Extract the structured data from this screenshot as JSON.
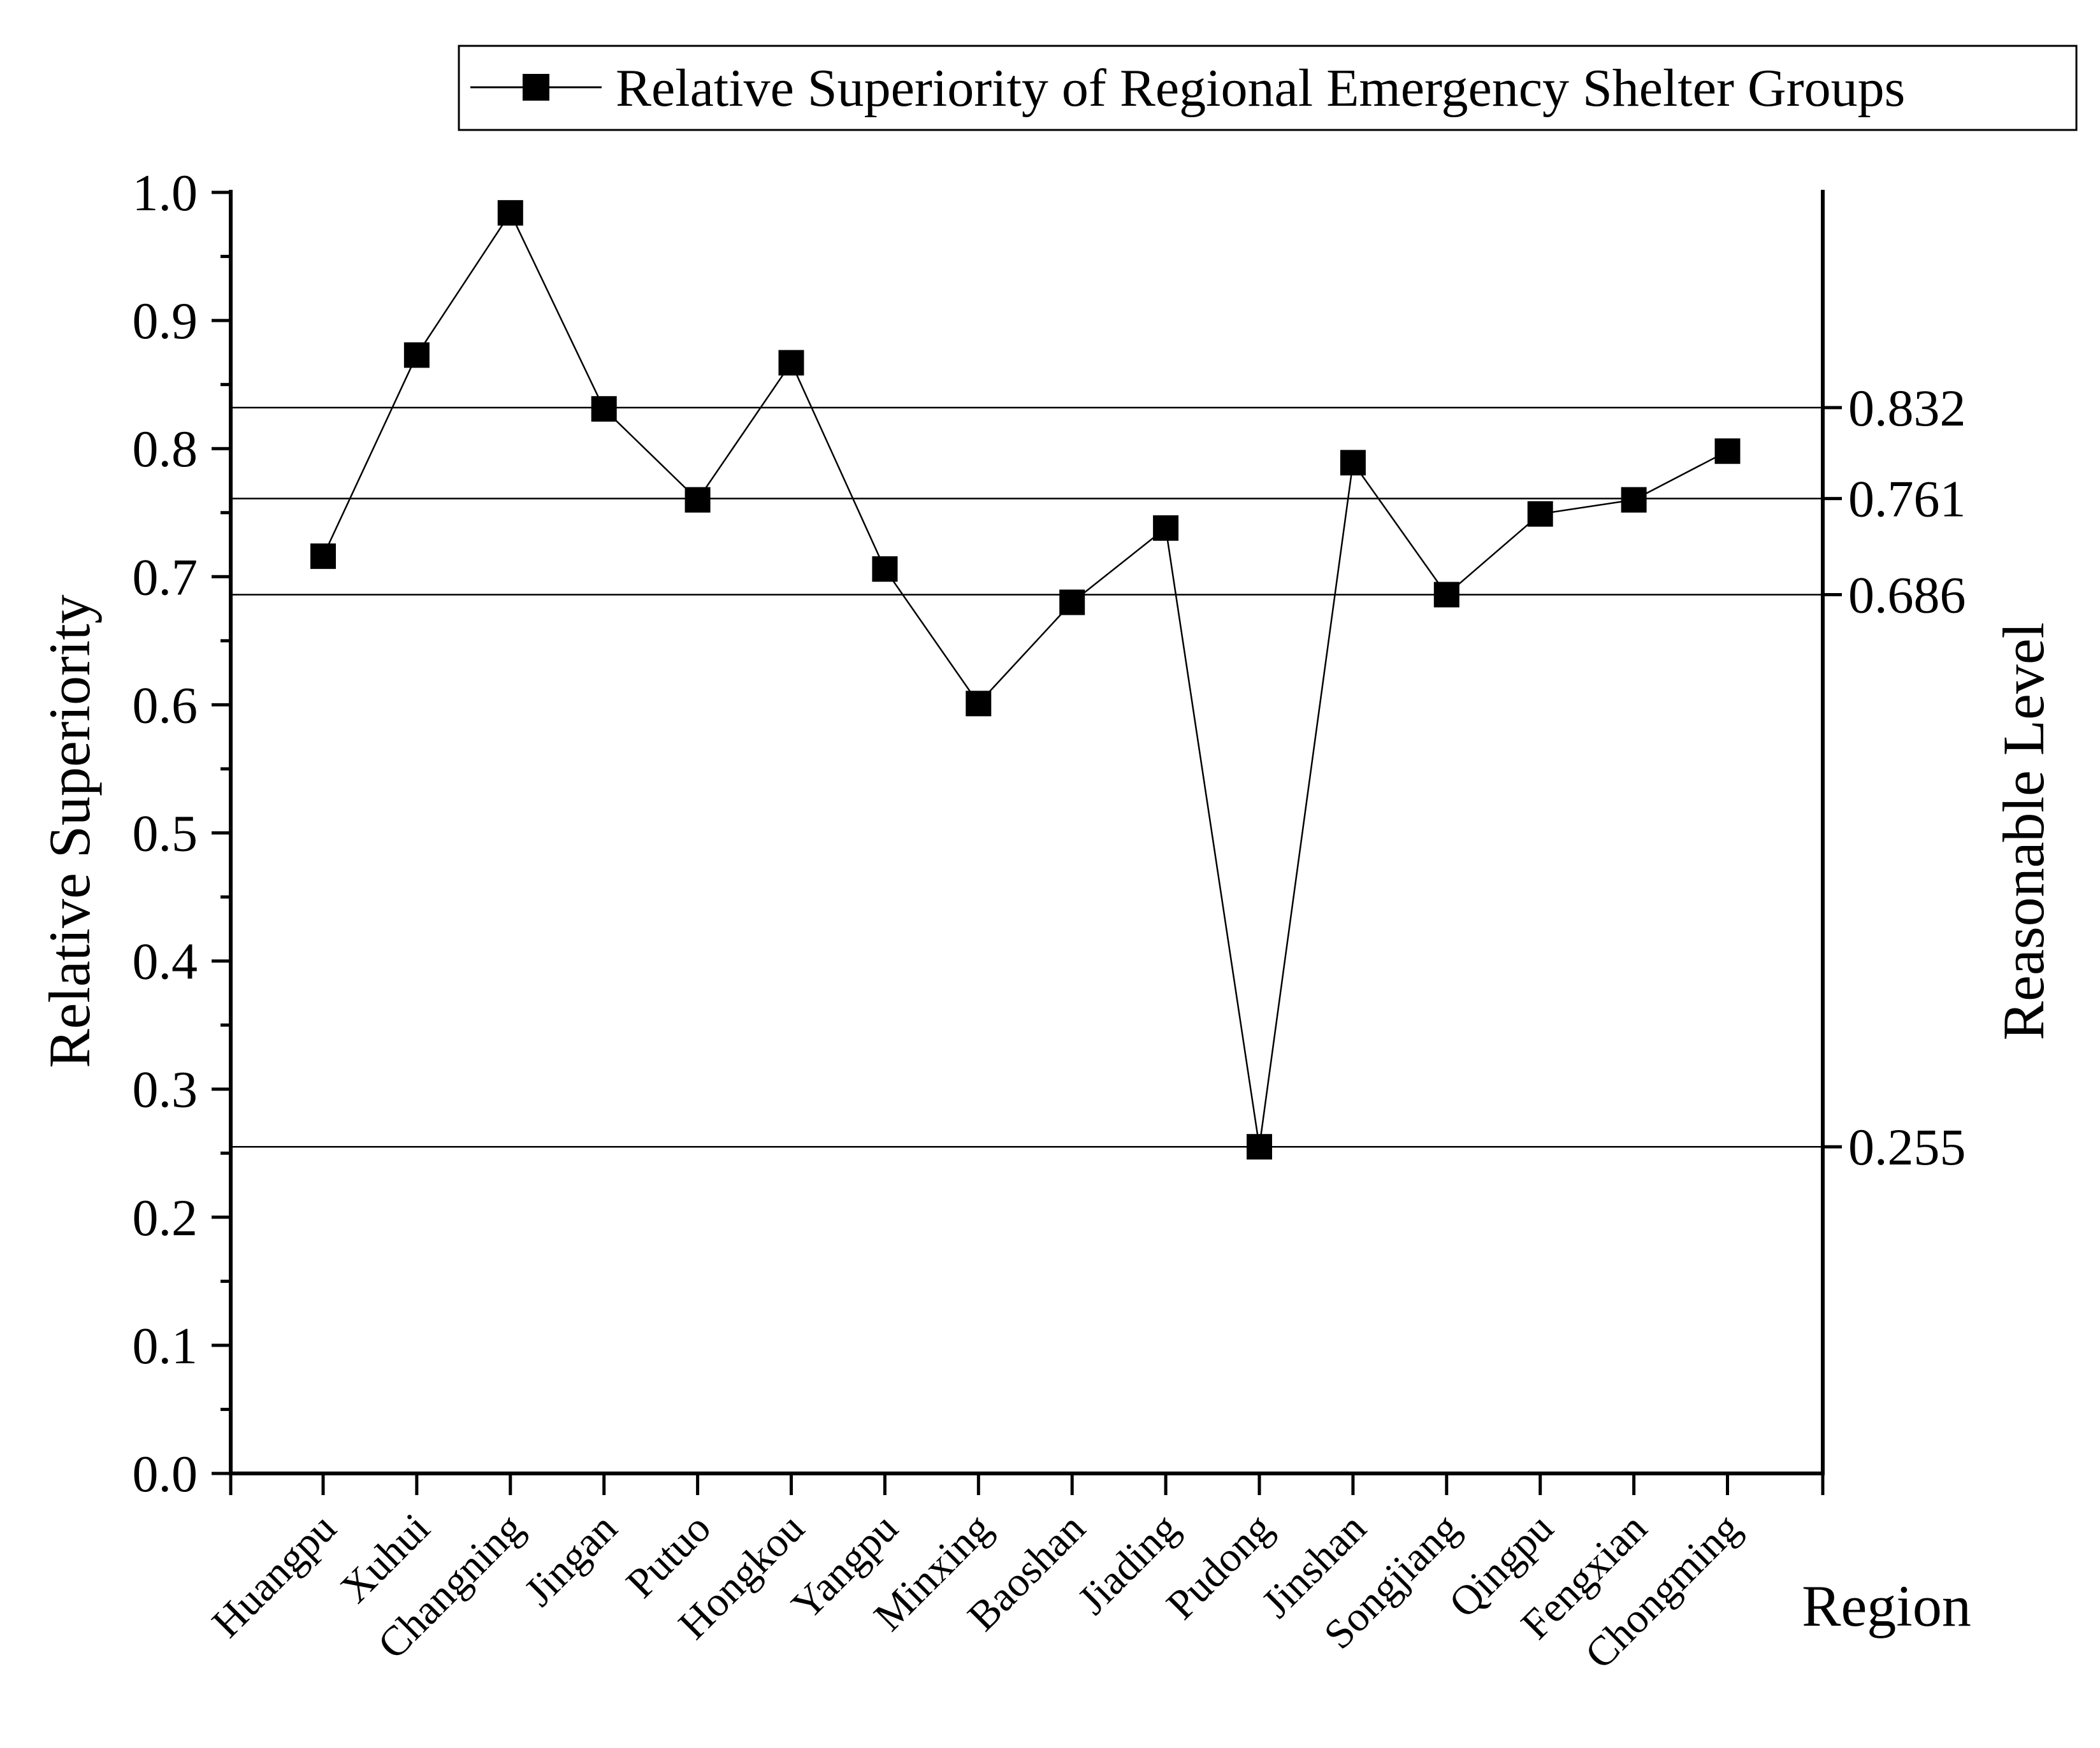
{
  "chart_data": {
    "type": "line",
    "title": "",
    "xlabel": "Region",
    "ylabel": "Relative Superiority",
    "y2label": "Reasonable Level",
    "ylim": [
      0,
      1
    ],
    "yticks": [
      "0.0",
      "0.1",
      "0.2",
      "0.3",
      "0.4",
      "0.5",
      "0.6",
      "0.7",
      "0.8",
      "0.9",
      "1.0"
    ],
    "grid": false,
    "legend_position": "top-right",
    "categories": [
      "Huangpu",
      "Xuhui",
      "Changning",
      "Jingan",
      "Putuo",
      "Hongkou",
      "Yangpu",
      "Minxing",
      "Baoshan",
      "Jiading",
      "Pudong",
      "Jinshan",
      "Songjiang",
      "Qingpu",
      "Fengxian",
      "Chongming"
    ],
    "series": [
      {
        "name": "Relative Superiority of Regional Emergency Shelter Groups",
        "marker": "square",
        "color": "#000000",
        "values": [
          0.716,
          0.873,
          0.984,
          0.831,
          0.76,
          0.867,
          0.706,
          0.601,
          0.68,
          0.738,
          0.255,
          0.789,
          0.686,
          0.749,
          0.76,
          0.798
        ]
      }
    ],
    "reference_lines": [
      {
        "value": 0.832,
        "label": "0.832"
      },
      {
        "value": 0.761,
        "label": "0.761"
      },
      {
        "value": 0.686,
        "label": "0.686"
      },
      {
        "value": 0.255,
        "label": "0.255"
      }
    ]
  }
}
